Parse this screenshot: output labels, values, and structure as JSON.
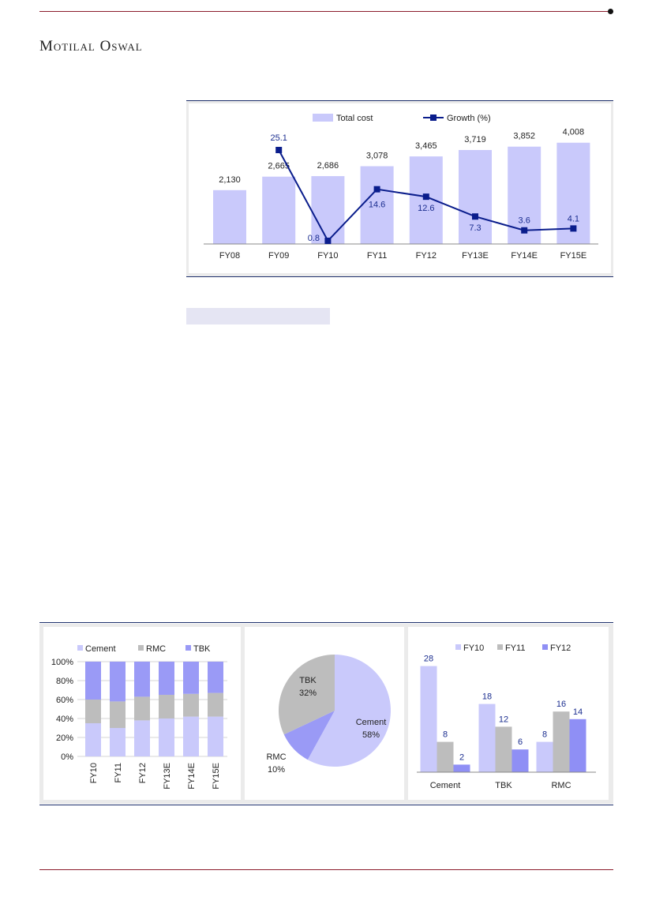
{
  "brand": "Motilal Oswal",
  "chart_data": [
    {
      "type": "bar",
      "categories": [
        "FY08",
        "FY09",
        "FY10",
        "FY11",
        "FY12",
        "FY13E",
        "FY14E",
        "FY15E"
      ],
      "series": [
        {
          "name": "Total cost",
          "type": "bar",
          "values": [
            2130,
            2665,
            2686,
            3078,
            3465,
            3719,
            3852,
            4008
          ],
          "labels": [
            "2,130",
            "2,665",
            "2,686",
            "3,078",
            "3,465",
            "3,719",
            "3,852",
            "4,008"
          ]
        },
        {
          "name": "Growth (%)",
          "type": "line",
          "values": [
            null,
            25.1,
            0.8,
            14.6,
            12.6,
            7.3,
            3.6,
            4.1
          ],
          "labels": [
            "",
            "25.1",
            "0.8",
            "14.6",
            "12.6",
            "7.3",
            "3.6",
            "4.1"
          ]
        }
      ],
      "colors": {
        "bar": "#c9c9fb",
        "line": "#0a1d8c"
      },
      "legend": "top"
    },
    {
      "type": "bar",
      "stacked": true,
      "categories": [
        "FY10",
        "FY11",
        "FY12",
        "FY13E",
        "FY14E",
        "FY15E"
      ],
      "series": [
        {
          "name": "Cement",
          "values": [
            35,
            30,
            38,
            40,
            42,
            42
          ],
          "color": "#c9c9fb"
        },
        {
          "name": "RMC",
          "values": [
            25,
            28,
            25,
            25,
            24,
            25
          ],
          "color": "#bdbdbd"
        },
        {
          "name": "TBK",
          "values": [
            40,
            42,
            37,
            35,
            34,
            33
          ],
          "color": "#9a9af6"
        }
      ],
      "yticks": [
        "100%",
        "80%",
        "60%",
        "40%",
        "20%",
        "0%"
      ],
      "ylim": [
        0,
        100
      ],
      "legend": "top"
    },
    {
      "type": "pie",
      "slices": [
        {
          "name": "Cement",
          "value": 58,
          "label": "58%",
          "color": "#c9c9fb"
        },
        {
          "name": "RMC",
          "value": 10,
          "label": "10%",
          "color": "#9a9af6"
        },
        {
          "name": "TBK",
          "value": 32,
          "label": "32%",
          "color": "#bdbdbd"
        }
      ]
    },
    {
      "type": "bar",
      "categories": [
        "Cement",
        "TBK",
        "RMC"
      ],
      "series": [
        {
          "name": "FY10",
          "values": [
            28,
            18,
            8
          ],
          "color": "#c9c9fb"
        },
        {
          "name": "FY11",
          "values": [
            8,
            12,
            16
          ],
          "color": "#bdbdbd"
        },
        {
          "name": "FY12",
          "values": [
            2,
            6,
            14
          ],
          "color": "#8f8ff5"
        }
      ],
      "legend": "top"
    }
  ]
}
